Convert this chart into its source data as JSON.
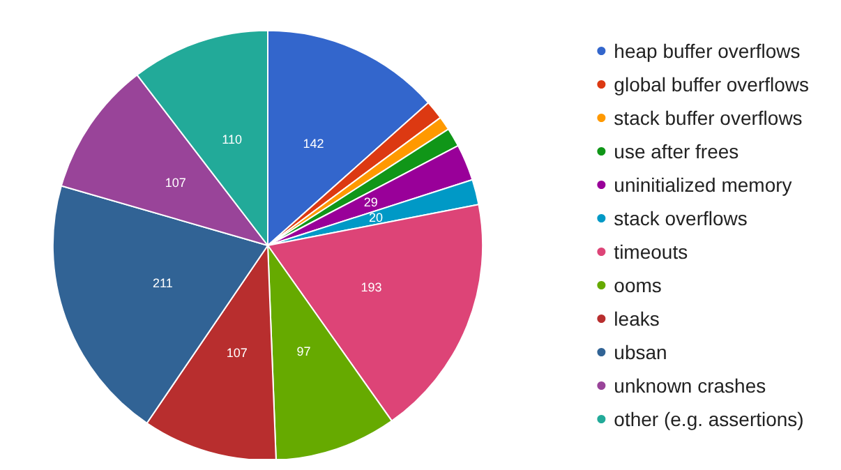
{
  "chart_data": {
    "type": "pie",
    "categories": [
      "heap buffer overflows",
      "global buffer overflows",
      "stack buffer overflows",
      "use after frees",
      "uninitialized memory",
      "stack overflows",
      "timeouts",
      "ooms",
      "leaks",
      "ubsan",
      "unknown crashes",
      "other (e.g. assertions)"
    ],
    "values": [
      142,
      15,
      11,
      15,
      29,
      20,
      193,
      97,
      107,
      211,
      107,
      110
    ],
    "value_labels": [
      "142",
      null,
      null,
      null,
      "29",
      "20",
      "193",
      "97",
      "107",
      "211",
      "107",
      "110"
    ],
    "colors": [
      "#3366cc",
      "#dc3912",
      "#ff9900",
      "#109618",
      "#990099",
      "#0099c6",
      "#dd4477",
      "#66aa00",
      "#b82e2e",
      "#316395",
      "#994499",
      "#22aa99"
    ],
    "legend": "right"
  }
}
